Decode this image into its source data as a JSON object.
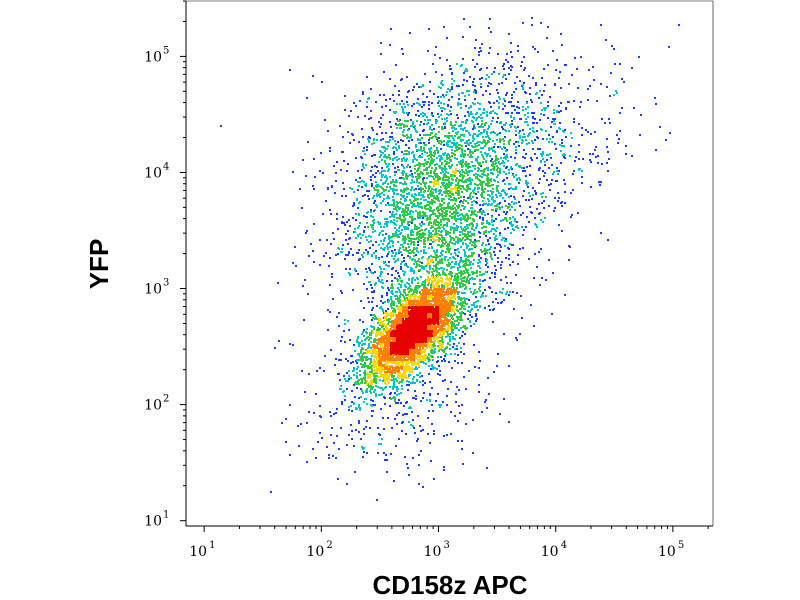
{
  "chart_data": {
    "type": "scatter",
    "subtype": "flow-cytometry-density-dot-plot",
    "xlabel": "CD158z APC",
    "ylabel": "YFP",
    "x_scale": "log",
    "y_scale": "log",
    "xlim": [
      7,
      220000
    ],
    "ylim": [
      9,
      300000
    ],
    "x_ticks": [
      {
        "base": "10",
        "exp": "1",
        "value": 10
      },
      {
        "base": "10",
        "exp": "2",
        "value": 100
      },
      {
        "base": "10",
        "exp": "3",
        "value": 1000
      },
      {
        "base": "10",
        "exp": "4",
        "value": 10000
      },
      {
        "base": "10",
        "exp": "5",
        "value": 100000
      }
    ],
    "y_ticks": [
      {
        "base": "10",
        "exp": "1",
        "value": 10
      },
      {
        "base": "10",
        "exp": "2",
        "value": 100
      },
      {
        "base": "10",
        "exp": "3",
        "value": 1000
      },
      {
        "base": "10",
        "exp": "4",
        "value": 10000
      },
      {
        "base": "10",
        "exp": "5",
        "value": 100000
      }
    ],
    "grid": false,
    "legend": "none",
    "color_scale": [
      "#00008b",
      "#1e3cff",
      "#00c8c8",
      "#2ecc40",
      "#ffd700",
      "#ff7f00",
      "#e60000"
    ],
    "populations": [
      {
        "x_center": 600,
        "y_center": 450,
        "x_spread_decades": 0.2,
        "y_spread_decades": 0.22,
        "correlation": 0.65,
        "share": 0.5
      },
      {
        "x_center": 900,
        "y_center": 5000,
        "x_spread_decades": 0.4,
        "y_spread_decades": 0.5,
        "correlation": 0.1,
        "share": 0.35
      },
      {
        "x_center": 3000,
        "y_center": 20000,
        "x_spread_decades": 0.55,
        "y_spread_decades": 0.4,
        "correlation": 0.2,
        "share": 0.1
      },
      {
        "x_center": 400,
        "y_center": 150,
        "x_spread_decades": 0.4,
        "y_spread_decades": 0.4,
        "correlation": 0.2,
        "share": 0.05
      }
    ]
  }
}
